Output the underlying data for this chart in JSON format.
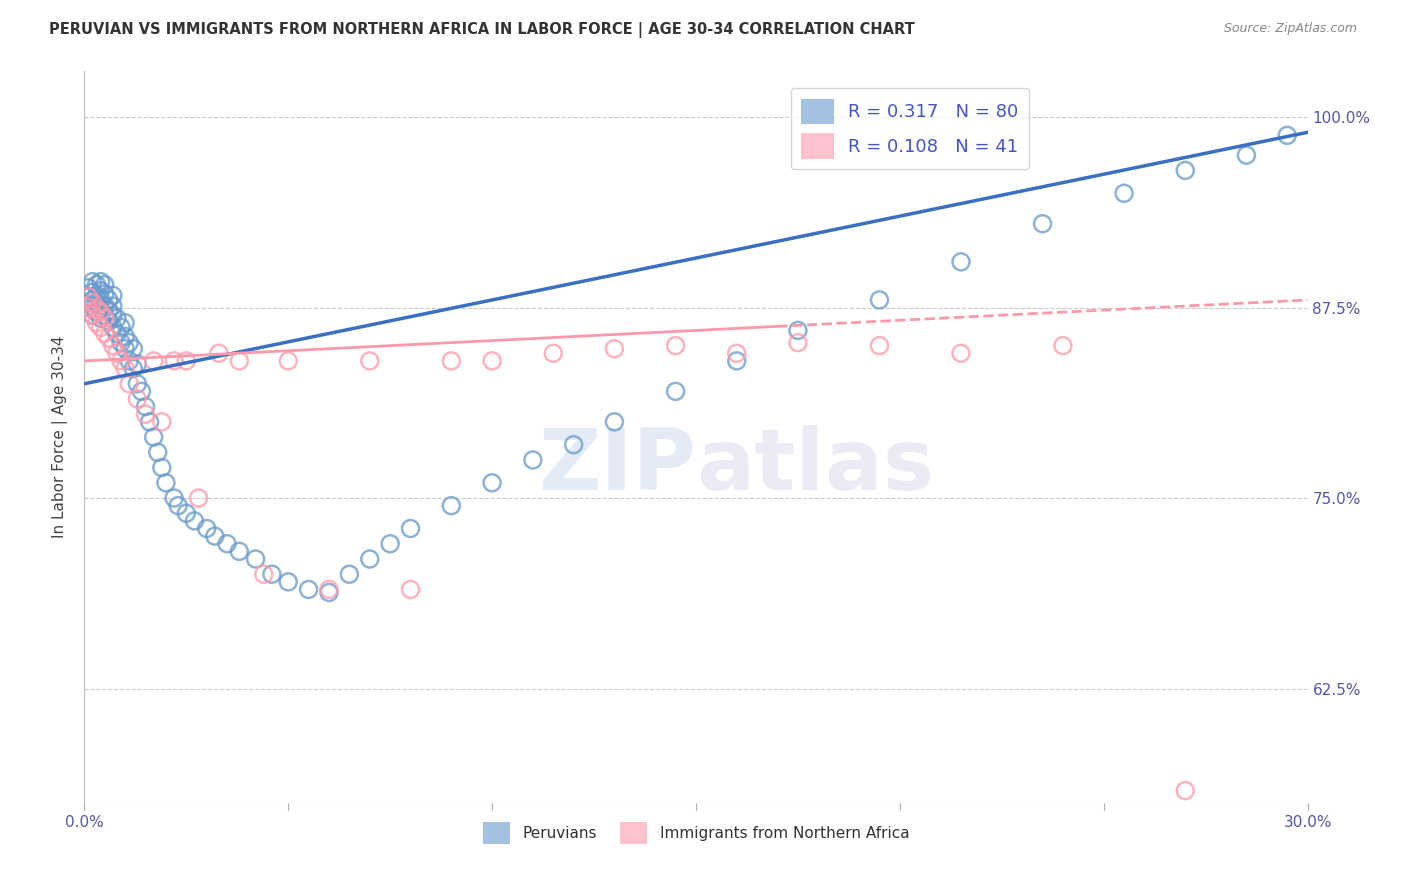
{
  "title": "PERUVIAN VS IMMIGRANTS FROM NORTHERN AFRICA IN LABOR FORCE | AGE 30-34 CORRELATION CHART",
  "source": "Source: ZipAtlas.com",
  "ylabel": "In Labor Force | Age 30-34",
  "xlim": [
    0.0,
    0.3
  ],
  "ylim": [
    0.55,
    1.03
  ],
  "xticks": [
    0.0,
    0.05,
    0.1,
    0.15,
    0.2,
    0.25,
    0.3
  ],
  "xtick_labels": [
    "0.0%",
    "",
    "",
    "",
    "",
    "",
    "30.0%"
  ],
  "ytick_positions": [
    0.625,
    0.75,
    0.875,
    1.0
  ],
  "ytick_labels": [
    "62.5%",
    "75.0%",
    "87.5%",
    "100.0%"
  ],
  "blue_color": "#6699cc",
  "pink_color": "#ff99aa",
  "legend_blue_label": "Peruvians",
  "legend_pink_label": "Immigrants from Northern Africa",
  "R_blue": 0.317,
  "N_blue": 80,
  "R_pink": 0.108,
  "N_pink": 41,
  "blue_scatter_x": [
    0.001,
    0.001,
    0.001,
    0.002,
    0.002,
    0.002,
    0.002,
    0.002,
    0.003,
    0.003,
    0.003,
    0.003,
    0.004,
    0.004,
    0.004,
    0.004,
    0.004,
    0.005,
    0.005,
    0.005,
    0.005,
    0.006,
    0.006,
    0.006,
    0.007,
    0.007,
    0.007,
    0.007,
    0.008,
    0.008,
    0.009,
    0.009,
    0.01,
    0.01,
    0.01,
    0.011,
    0.011,
    0.012,
    0.012,
    0.013,
    0.013,
    0.014,
    0.015,
    0.016,
    0.017,
    0.018,
    0.019,
    0.02,
    0.022,
    0.023,
    0.025,
    0.027,
    0.03,
    0.032,
    0.035,
    0.038,
    0.042,
    0.046,
    0.05,
    0.055,
    0.06,
    0.065,
    0.07,
    0.075,
    0.08,
    0.09,
    0.1,
    0.11,
    0.12,
    0.13,
    0.145,
    0.16,
    0.175,
    0.195,
    0.215,
    0.235,
    0.255,
    0.27,
    0.285,
    0.295
  ],
  "blue_scatter_y": [
    0.875,
    0.882,
    0.888,
    0.87,
    0.876,
    0.88,
    0.885,
    0.892,
    0.872,
    0.878,
    0.883,
    0.89,
    0.868,
    0.874,
    0.88,
    0.886,
    0.892,
    0.87,
    0.876,
    0.884,
    0.89,
    0.866,
    0.873,
    0.88,
    0.862,
    0.87,
    0.876,
    0.883,
    0.858,
    0.868,
    0.852,
    0.862,
    0.848,
    0.856,
    0.865,
    0.84,
    0.852,
    0.835,
    0.848,
    0.825,
    0.838,
    0.82,
    0.81,
    0.8,
    0.79,
    0.78,
    0.77,
    0.76,
    0.75,
    0.745,
    0.74,
    0.735,
    0.73,
    0.725,
    0.72,
    0.715,
    0.71,
    0.7,
    0.695,
    0.69,
    0.688,
    0.7,
    0.71,
    0.72,
    0.73,
    0.745,
    0.76,
    0.775,
    0.785,
    0.8,
    0.82,
    0.84,
    0.86,
    0.88,
    0.905,
    0.93,
    0.95,
    0.965,
    0.975,
    0.988
  ],
  "pink_scatter_x": [
    0.001,
    0.001,
    0.002,
    0.002,
    0.003,
    0.003,
    0.004,
    0.004,
    0.005,
    0.005,
    0.006,
    0.007,
    0.008,
    0.009,
    0.01,
    0.011,
    0.013,
    0.015,
    0.017,
    0.019,
    0.022,
    0.025,
    0.028,
    0.033,
    0.038,
    0.044,
    0.05,
    0.06,
    0.07,
    0.08,
    0.09,
    0.1,
    0.115,
    0.13,
    0.145,
    0.16,
    0.175,
    0.195,
    0.215,
    0.24,
    0.27
  ],
  "pink_scatter_y": [
    0.875,
    0.882,
    0.87,
    0.878,
    0.865,
    0.874,
    0.862,
    0.872,
    0.858,
    0.868,
    0.855,
    0.85,
    0.845,
    0.84,
    0.835,
    0.825,
    0.815,
    0.805,
    0.84,
    0.8,
    0.84,
    0.84,
    0.75,
    0.845,
    0.84,
    0.7,
    0.84,
    0.69,
    0.84,
    0.69,
    0.84,
    0.84,
    0.845,
    0.848,
    0.85,
    0.845,
    0.852,
    0.85,
    0.845,
    0.85,
    0.558
  ],
  "watermark_zip": "ZIP",
  "watermark_atlas": "atlas",
  "background_color": "#ffffff",
  "grid_color": "#cccccc"
}
